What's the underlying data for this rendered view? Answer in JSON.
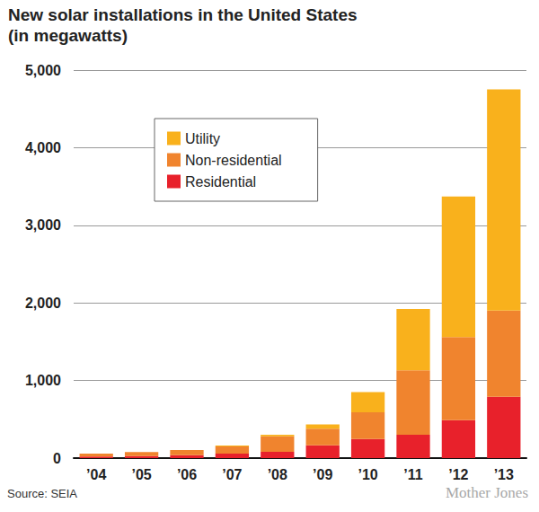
{
  "chart_data": {
    "type": "bar",
    "title": "New solar installations in the United States",
    "subtitle": "(in megawatts)",
    "categories": [
      "’04",
      "’05",
      "’06",
      "’07",
      "’08",
      "’09",
      "’10",
      "’11",
      "’12",
      "’13"
    ],
    "series": [
      {
        "name": "Residential",
        "color": "#e8212b",
        "values": [
          20,
          27,
          38,
          58,
          80,
          165,
          245,
          300,
          490,
          790
        ]
      },
      {
        "name": "Non-residential",
        "color": "#f0842e",
        "values": [
          37,
          50,
          65,
          93,
          200,
          215,
          345,
          830,
          1070,
          1110
        ]
      },
      {
        "name": "Utility",
        "color": "#f9b11c",
        "values": [
          1,
          1,
          2,
          10,
          20,
          55,
          260,
          790,
          1810,
          2850
        ]
      }
    ],
    "ylim": [
      0,
      5000
    ],
    "yticks": [
      0,
      {
        "value": 1000,
        "label": "1,000"
      },
      {
        "value": 2000,
        "label": "2,000"
      },
      {
        "value": 3000,
        "label": "3,000"
      },
      {
        "value": 4000,
        "label": "4,000"
      },
      {
        "value": 5000,
        "label": "5,000"
      }
    ],
    "grid": true,
    "stacked": true,
    "legend": "upper left",
    "annotations": [
      "Source: SEIA",
      "Mother Jones"
    ]
  }
}
